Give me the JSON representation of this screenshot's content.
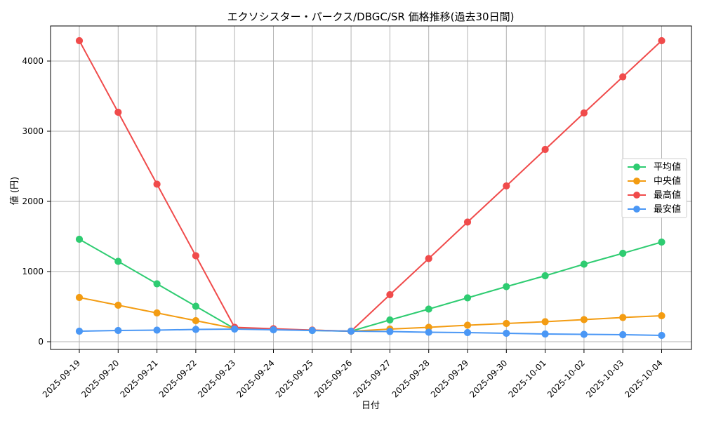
{
  "chart_data": {
    "type": "line",
    "title": "エクソシスター・パークス/DBGC/SR 価格推移(過去30日間)",
    "xlabel": "日付",
    "ylabel": "値 (円)",
    "categories": [
      "2025-09-19",
      "2025-09-20",
      "2025-09-21",
      "2025-09-22",
      "2025-09-23",
      "2025-09-24",
      "2025-09-25",
      "2025-09-26",
      "2025-09-27",
      "2025-09-28",
      "2025-09-29",
      "2025-09-30",
      "2025-10-01",
      "2025-10-02",
      "2025-10-03",
      "2025-10-04"
    ],
    "y_ticks": [
      0,
      1000,
      2000,
      3000,
      4000
    ],
    "ylim": [
      -110,
      4500
    ],
    "legend_position": "center-right",
    "grid": true,
    "series": [
      {
        "name": "平均値",
        "color": "#2ecc71",
        "values": [
          1460,
          1145,
          825,
          505,
          185,
          175,
          160,
          150,
          310,
          465,
          625,
          785,
          940,
          1105,
          1260,
          1420
        ]
      },
      {
        "name": "中央値",
        "color": "#f39c12",
        "values": [
          630,
          520,
          410,
          300,
          190,
          175,
          165,
          150,
          180,
          205,
          235,
          260,
          285,
          315,
          345,
          370
        ]
      },
      {
        "name": "最高値",
        "color": "#f04b4b",
        "values": [
          4290,
          3270,
          2245,
          1225,
          205,
          185,
          165,
          150,
          670,
          1185,
          1705,
          2220,
          2740,
          3260,
          3775,
          4290
        ]
      },
      {
        "name": "最安値",
        "color": "#4a97f5",
        "values": [
          150,
          160,
          165,
          175,
          180,
          170,
          160,
          150,
          145,
          135,
          130,
          120,
          110,
          105,
          100,
          90
        ]
      }
    ]
  }
}
